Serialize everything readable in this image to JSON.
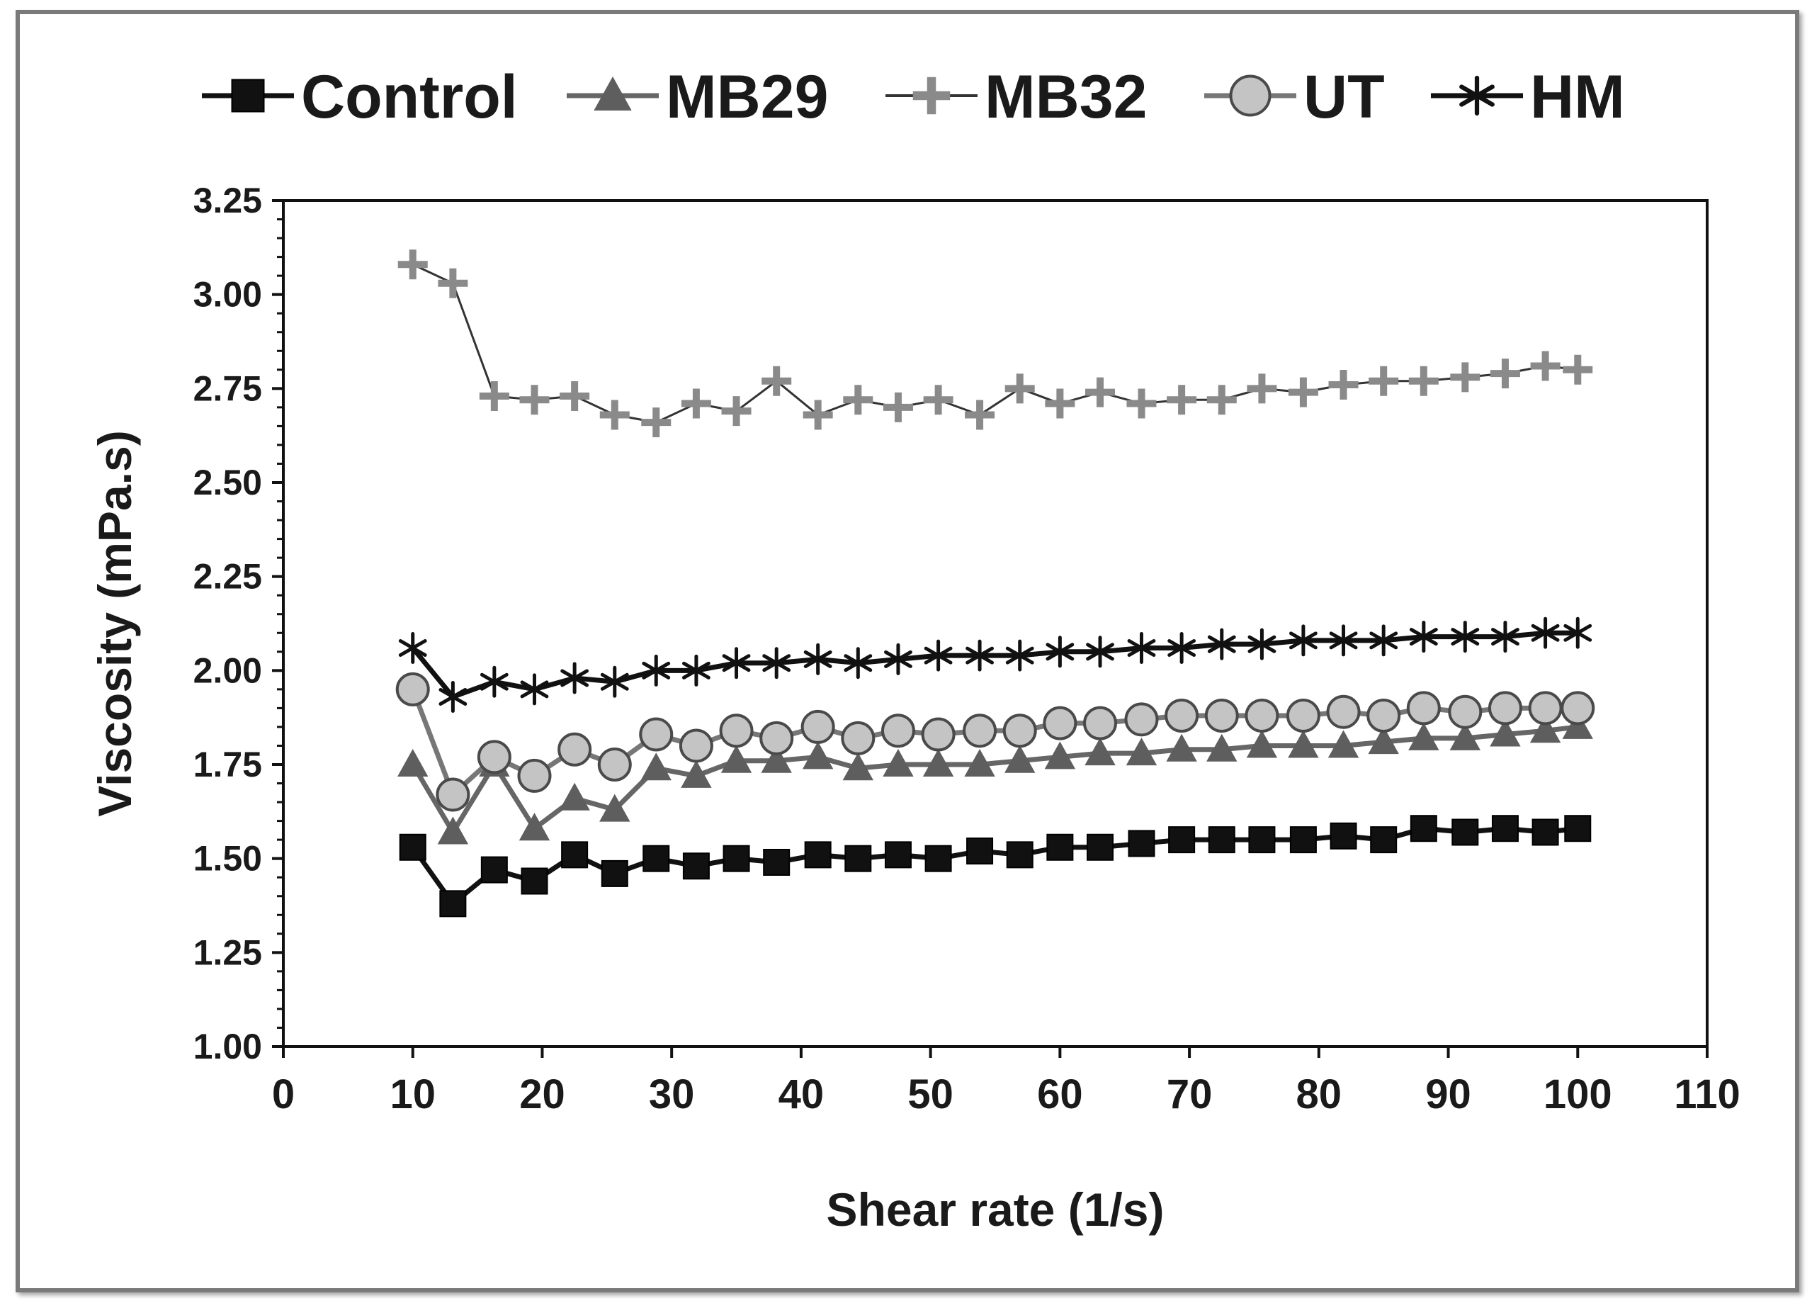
{
  "chart_data": {
    "type": "line",
    "title": "",
    "xlabel": "Shear rate (1/s)",
    "ylabel": "Viscosity (mPa.s)",
    "xlim": [
      0,
      110
    ],
    "ylim": [
      1.0,
      3.25
    ],
    "xticks": [
      0,
      10,
      20,
      30,
      40,
      50,
      60,
      70,
      80,
      90,
      100,
      110
    ],
    "yticks": [
      "1.00",
      "1.25",
      "1.50",
      "1.75",
      "2.00",
      "2.25",
      "2.50",
      "2.75",
      "3.00",
      "3.25"
    ],
    "legend_position": "top",
    "x": [
      10,
      13.1,
      16.3,
      19.4,
      22.5,
      25.6,
      28.8,
      31.9,
      35,
      38.1,
      41.3,
      44.4,
      47.5,
      50.6,
      53.8,
      56.9,
      60,
      63.1,
      66.3,
      69.4,
      72.5,
      75.6,
      78.8,
      81.9,
      85,
      88.1,
      91.3,
      94.4,
      97.5,
      100
    ],
    "series": [
      {
        "name": "Control",
        "marker": "square",
        "color": "#111111",
        "values": [
          1.53,
          1.38,
          1.47,
          1.44,
          1.51,
          1.46,
          1.5,
          1.48,
          1.5,
          1.49,
          1.51,
          1.5,
          1.51,
          1.5,
          1.52,
          1.51,
          1.53,
          1.53,
          1.54,
          1.55,
          1.55,
          1.55,
          1.55,
          1.56,
          1.55,
          1.58,
          1.57,
          1.58,
          1.57,
          1.58
        ]
      },
      {
        "name": "MB29",
        "marker": "triangle",
        "color": "#5e5e5e",
        "values": [
          1.75,
          1.57,
          1.75,
          1.58,
          1.66,
          1.63,
          1.74,
          1.72,
          1.76,
          1.76,
          1.77,
          1.74,
          1.75,
          1.75,
          1.75,
          1.76,
          1.77,
          1.78,
          1.78,
          1.79,
          1.79,
          1.8,
          1.8,
          1.8,
          1.81,
          1.82,
          1.82,
          1.83,
          1.84,
          1.85
        ]
      },
      {
        "name": "MB32",
        "marker": "plus",
        "color": "#8a8a8a",
        "values": [
          3.08,
          3.03,
          2.73,
          2.72,
          2.73,
          2.68,
          2.66,
          2.71,
          2.69,
          2.77,
          2.68,
          2.72,
          2.7,
          2.72,
          2.68,
          2.75,
          2.71,
          2.74,
          2.71,
          2.72,
          2.72,
          2.75,
          2.74,
          2.76,
          2.77,
          2.77,
          2.78,
          2.79,
          2.81,
          2.8
        ]
      },
      {
        "name": "UT",
        "marker": "circle",
        "color": "#6a6a6a",
        "values": [
          1.95,
          1.67,
          1.77,
          1.72,
          1.79,
          1.75,
          1.83,
          1.8,
          1.84,
          1.82,
          1.85,
          1.82,
          1.84,
          1.83,
          1.84,
          1.84,
          1.86,
          1.86,
          1.87,
          1.88,
          1.88,
          1.88,
          1.88,
          1.89,
          1.88,
          1.9,
          1.89,
          1.9,
          1.9,
          1.9
        ]
      },
      {
        "name": "HM",
        "marker": "asterisk",
        "color": "#111111",
        "values": [
          2.06,
          1.93,
          1.97,
          1.95,
          1.98,
          1.97,
          2.0,
          2.0,
          2.02,
          2.02,
          2.03,
          2.02,
          2.03,
          2.04,
          2.04,
          2.04,
          2.05,
          2.05,
          2.06,
          2.06,
          2.07,
          2.07,
          2.08,
          2.08,
          2.08,
          2.09,
          2.09,
          2.09,
          2.1,
          2.1
        ]
      }
    ]
  }
}
